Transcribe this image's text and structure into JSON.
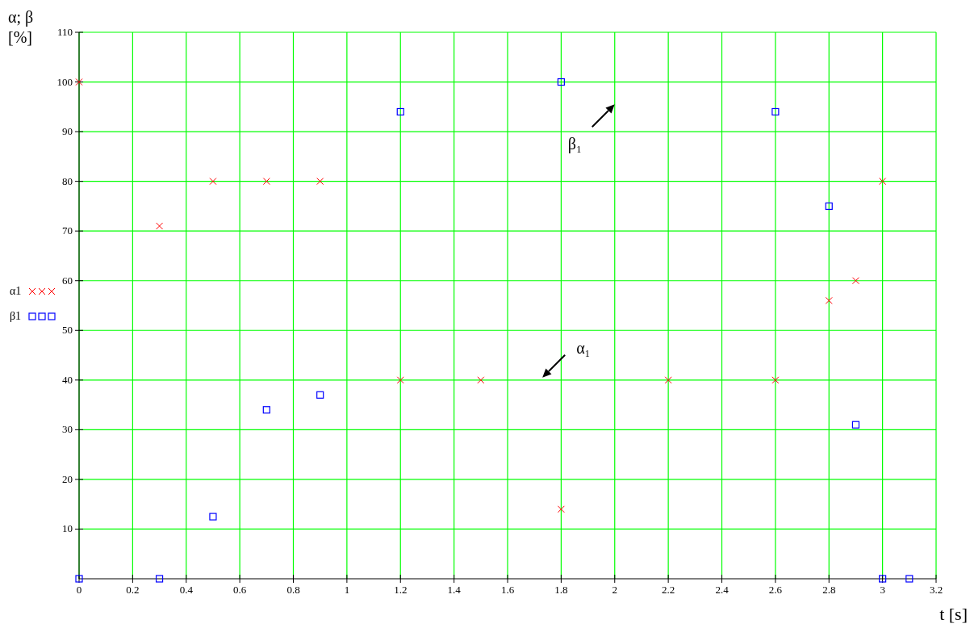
{
  "chart_data": {
    "type": "scatter",
    "xlabel": "t [s]",
    "ylabel": "α; β [%]",
    "xlim": [
      0,
      3.2
    ],
    "xticks": [
      0,
      0.2,
      0.4,
      0.6,
      0.8,
      1,
      1.2,
      1.4,
      1.6,
      1.8,
      2,
      2.2,
      2.4,
      2.6,
      2.8,
      3,
      3.2
    ],
    "ylim": [
      0,
      110
    ],
    "yticks": [
      10,
      20,
      30,
      40,
      50,
      60,
      70,
      80,
      90,
      100,
      110
    ],
    "grid": true,
    "legend": "left",
    "series": [
      {
        "name": "α1",
        "color": "#ff0000",
        "marker": "cross",
        "x": [
          0,
          0.3,
          0.5,
          0.7,
          0.9,
          1.2,
          1.5,
          1.8,
          2.2,
          2.6,
          2.8,
          2.9,
          3.0
        ],
        "values": [
          100,
          71,
          80,
          80,
          80,
          40,
          40,
          14,
          40,
          40,
          56,
          60,
          80
        ]
      },
      {
        "name": "β1",
        "color": "#0000ff",
        "marker": "square",
        "x": [
          0,
          0.3,
          0.5,
          0.7,
          0.9,
          1.2,
          1.8,
          2.6,
          2.8,
          2.9,
          3.0,
          3.1
        ],
        "values": [
          0,
          0,
          12.5,
          34,
          37,
          94,
          100,
          94,
          75,
          31,
          0,
          0
        ]
      }
    ],
    "annotations": [
      "β₁",
      "α₁"
    ]
  }
}
